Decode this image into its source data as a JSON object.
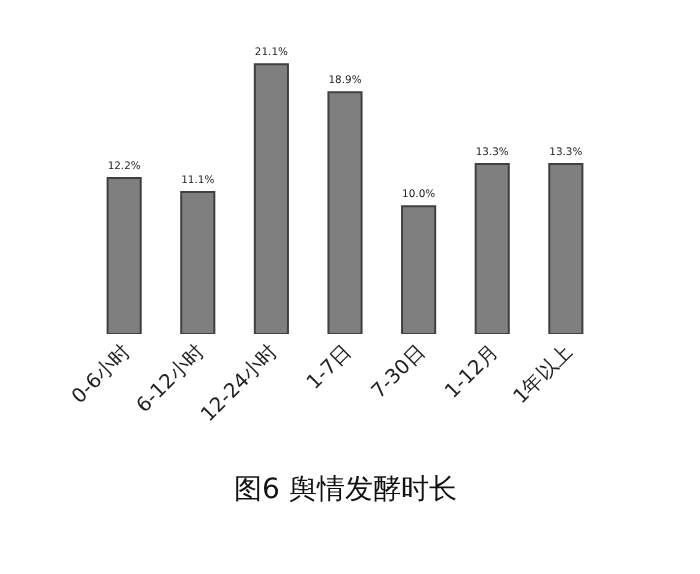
{
  "chart_data": {
    "type": "bar",
    "categories": [
      "0-6小时",
      "6-12小时",
      "12-24小时",
      "1-7日",
      "7-30日",
      "1-12月",
      "1年以上"
    ],
    "values": [
      12.2,
      11.1,
      21.1,
      18.9,
      10.0,
      13.3,
      13.3
    ],
    "value_labels": [
      "12.2%",
      "11.1%",
      "21.1%",
      "18.9%",
      "10.0%",
      "13.3%",
      "13.3%"
    ],
    "color": "#7f7f7f",
    "tick_labels": "x",
    "annotations": [
      "图6 舆情发酵时长"
    ]
  }
}
